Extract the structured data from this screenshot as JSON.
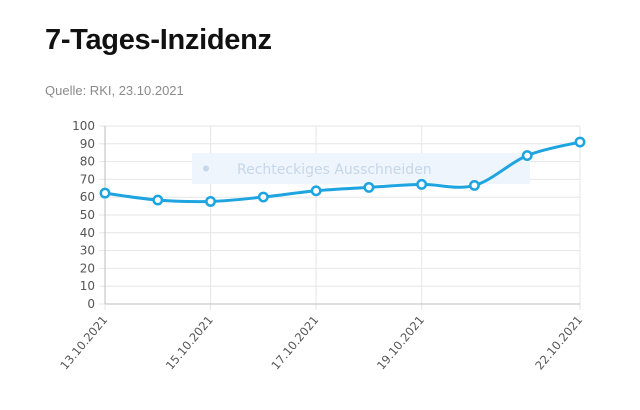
{
  "title": "7-Tages-Inzidenz",
  "source": "Quelle: RKI, 23.10.2021",
  "overlay": {
    "text": "Rechteckiges Ausschneiden"
  },
  "colors": {
    "line": "#1ea4e0",
    "grid": "#e6e6e6",
    "axis": "#bdbdbd"
  },
  "chart_data": {
    "type": "line",
    "title": "7-Tages-Inzidenz",
    "xlabel": "",
    "ylabel": "",
    "ylim": [
      0,
      100
    ],
    "yticks": [
      0,
      10,
      20,
      30,
      40,
      50,
      60,
      70,
      80,
      90,
      100
    ],
    "x": [
      "13.10.2021",
      "14.10.2021",
      "15.10.2021",
      "16.10.2021",
      "17.10.2021",
      "18.10.2021",
      "19.10.2021",
      "20.10.2021",
      "21.10.2021",
      "22.10.2021"
    ],
    "xtick_labels": [
      "13.10.2021",
      "15.10.2021",
      "17.10.2021",
      "19.10.2021",
      "22.10.2021"
    ],
    "grid": true,
    "series": [
      {
        "values": [
          62.3,
          58.4,
          57.6,
          60.1,
          63.6,
          65.5,
          67.2,
          66.6,
          83.4,
          91.0
        ]
      }
    ]
  }
}
